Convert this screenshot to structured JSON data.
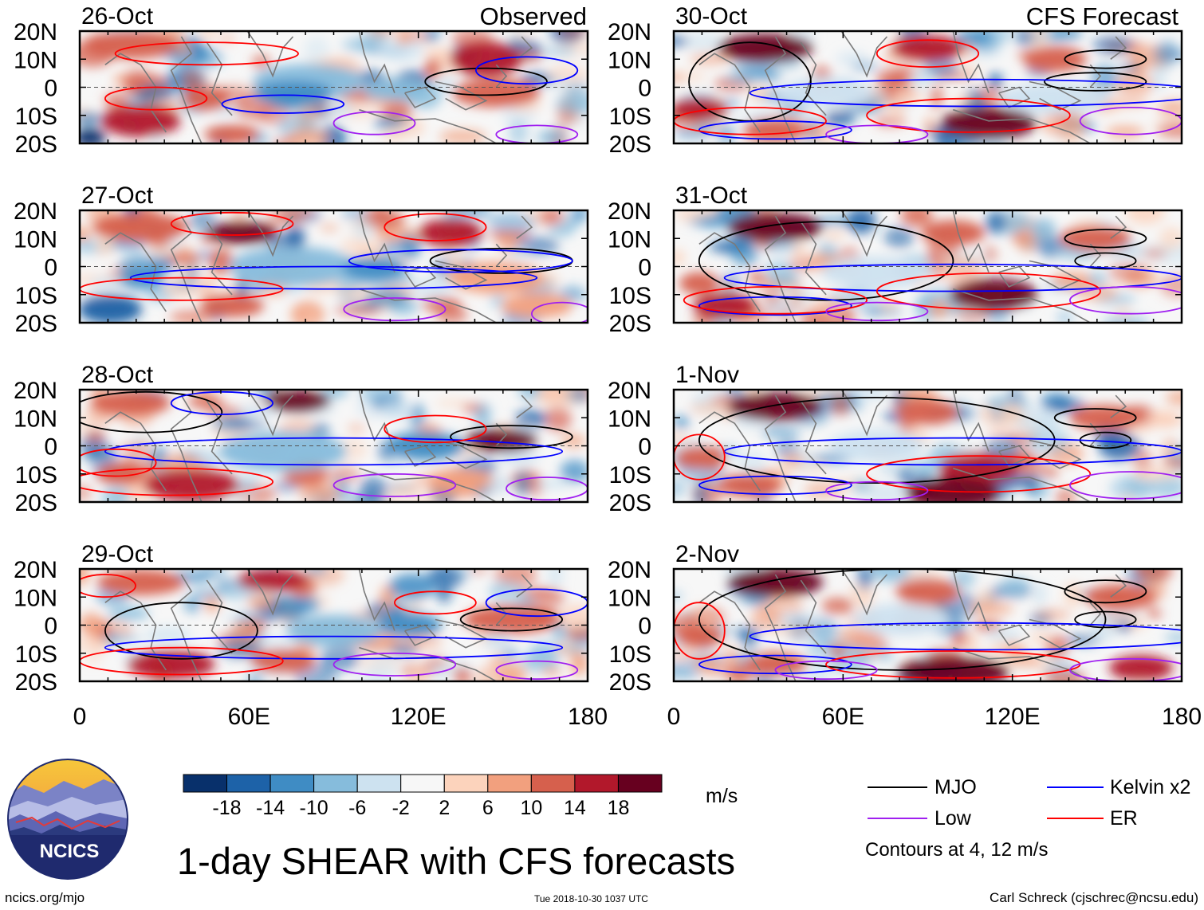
{
  "observed_label": "Observed",
  "forecast_label": "CFS Forecast",
  "panels": [
    {
      "date": "26-Oct",
      "column": "observed"
    },
    {
      "date": "27-Oct",
      "column": "observed"
    },
    {
      "date": "28-Oct",
      "column": "observed"
    },
    {
      "date": "29-Oct",
      "column": "observed"
    },
    {
      "date": "30-Oct",
      "column": "forecast"
    },
    {
      "date": "31-Oct",
      "column": "forecast"
    },
    {
      "date": "1-Nov",
      "column": "forecast"
    },
    {
      "date": "2-Nov",
      "column": "forecast"
    }
  ],
  "lat_labels": [
    "20N",
    "10N",
    "0",
    "10S",
    "20S"
  ],
  "lon_labels": [
    "0",
    "60E",
    "120E",
    "180"
  ],
  "colorbar": {
    "tick_labels": [
      "-18",
      "-14",
      "-10",
      "-6",
      "-2",
      "2",
      "6",
      "10",
      "14",
      "18"
    ],
    "colors": [
      "#08306b",
      "#1d62a8",
      "#3f8cc4",
      "#86bcdc",
      "#cde2f0",
      "#f7f7f7",
      "#fcd3bc",
      "#f2a07e",
      "#d6604d",
      "#b2182b",
      "#67001f"
    ],
    "units": "m/s"
  },
  "legend": {
    "items": [
      {
        "label": "MJO",
        "color": "#000000"
      },
      {
        "label": "Kelvin x2",
        "color": "#0000ff"
      },
      {
        "label": "Low",
        "color": "#a020f0"
      },
      {
        "label": "ER",
        "color": "#ff0000"
      }
    ],
    "note": "Contours at 4, 12 m/s"
  },
  "title": "1-day SHEAR with CFS forecasts",
  "logo_text": "NCICS",
  "footer": {
    "website": "ncics.org/mjo",
    "timestamp": "Tue 2018-10-30 1037 UTC",
    "credit": "Carl Schreck (cjschrec@ncsu.edu)"
  }
}
